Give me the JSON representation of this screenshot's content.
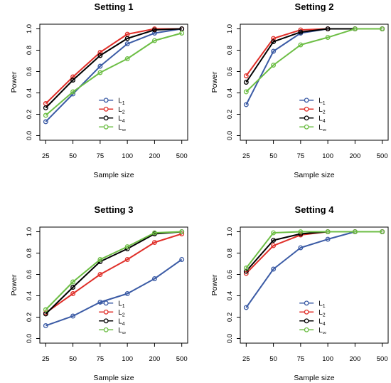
{
  "series_colors": {
    "L1": "#3B5BA5",
    "L2": "#E0302A",
    "L4": "#000000",
    "Linf": "#6DBE45"
  },
  "chart_data": [
    {
      "type": "line",
      "title": "Setting 1",
      "xlabel": "Sample size",
      "ylabel": "Power",
      "x": [
        "25",
        "50",
        "75",
        "100",
        "200",
        "500"
      ],
      "ylim": [
        0,
        1
      ],
      "yticks": [
        "0.0",
        "0.2",
        "0.4",
        "0.6",
        "0.8",
        "1.0"
      ],
      "grid": false,
      "legend_position": "bottom-center",
      "series": [
        {
          "name": "L1",
          "base": "L",
          "sub": "1",
          "color": "#3B5BA5",
          "values": [
            0.13,
            0.39,
            0.65,
            0.86,
            0.96,
            1.0
          ]
        },
        {
          "name": "L2",
          "base": "L",
          "sub": "2",
          "color": "#E0302A",
          "values": [
            0.3,
            0.55,
            0.78,
            0.95,
            1.0,
            1.0
          ]
        },
        {
          "name": "L4",
          "base": "L",
          "sub": "4",
          "color": "#000000",
          "values": [
            0.26,
            0.52,
            0.75,
            0.91,
            0.99,
            1.0
          ]
        },
        {
          "name": "L∞",
          "base": "L",
          "sub": "∞",
          "color": "#6DBE45",
          "values": [
            0.19,
            0.41,
            0.59,
            0.72,
            0.89,
            0.96
          ]
        }
      ]
    },
    {
      "type": "line",
      "title": "Setting 2",
      "xlabel": "Sample size",
      "ylabel": "Power",
      "x": [
        "25",
        "50",
        "75",
        "100",
        "200",
        "500"
      ],
      "ylim": [
        0,
        1
      ],
      "yticks": [
        "0.0",
        "0.2",
        "0.4",
        "0.6",
        "0.8",
        "1.0"
      ],
      "grid": false,
      "legend_position": "bottom-center",
      "series": [
        {
          "name": "L1",
          "base": "L",
          "sub": "1",
          "color": "#3B5BA5",
          "values": [
            0.29,
            0.79,
            0.96,
            1.0,
            1.0,
            1.0
          ]
        },
        {
          "name": "L2",
          "base": "L",
          "sub": "2",
          "color": "#E0302A",
          "values": [
            0.56,
            0.91,
            0.99,
            1.0,
            1.0,
            1.0
          ]
        },
        {
          "name": "L4",
          "base": "L",
          "sub": "4",
          "color": "#000000",
          "values": [
            0.5,
            0.88,
            0.97,
            1.0,
            1.0,
            1.0
          ]
        },
        {
          "name": "L∞",
          "base": "L",
          "sub": "∞",
          "color": "#6DBE45",
          "values": [
            0.41,
            0.66,
            0.85,
            0.92,
            1.0,
            1.0
          ]
        }
      ]
    },
    {
      "type": "line",
      "title": "Setting 3",
      "xlabel": "Sample size",
      "ylabel": "Power",
      "x": [
        "25",
        "50",
        "75",
        "100",
        "200",
        "500"
      ],
      "ylim": [
        0,
        1
      ],
      "yticks": [
        "0.0",
        "0.2",
        "0.4",
        "0.6",
        "0.8",
        "1.0"
      ],
      "grid": false,
      "legend_position": "bottom-center",
      "series": [
        {
          "name": "L1",
          "base": "L",
          "sub": "1",
          "color": "#3B5BA5",
          "values": [
            0.12,
            0.21,
            0.34,
            0.42,
            0.56,
            0.74
          ]
        },
        {
          "name": "L2",
          "base": "L",
          "sub": "2",
          "color": "#E0302A",
          "values": [
            0.24,
            0.42,
            0.6,
            0.74,
            0.9,
            0.98
          ]
        },
        {
          "name": "L4",
          "base": "L",
          "sub": "4",
          "color": "#000000",
          "values": [
            0.23,
            0.48,
            0.72,
            0.84,
            0.98,
            1.0
          ]
        },
        {
          "name": "L∞",
          "base": "L",
          "sub": "∞",
          "color": "#6DBE45",
          "values": [
            0.27,
            0.53,
            0.74,
            0.86,
            0.99,
            1.0
          ]
        }
      ]
    },
    {
      "type": "line",
      "title": "Setting 4",
      "xlabel": "Sample size",
      "ylabel": "Power",
      "x": [
        "25",
        "50",
        "75",
        "100",
        "200",
        "500"
      ],
      "ylim": [
        0,
        1
      ],
      "yticks": [
        "0.0",
        "0.2",
        "0.4",
        "0.6",
        "0.8",
        "1.0"
      ],
      "grid": false,
      "legend_position": "bottom-center",
      "series": [
        {
          "name": "L1",
          "base": "L",
          "sub": "1",
          "color": "#3B5BA5",
          "values": [
            0.29,
            0.65,
            0.85,
            0.93,
            1.0,
            1.0
          ]
        },
        {
          "name": "L2",
          "base": "L",
          "sub": "2",
          "color": "#E0302A",
          "values": [
            0.61,
            0.87,
            0.97,
            1.0,
            1.0,
            1.0
          ]
        },
        {
          "name": "L4",
          "base": "L",
          "sub": "4",
          "color": "#000000",
          "values": [
            0.63,
            0.92,
            0.98,
            1.0,
            1.0,
            1.0
          ]
        },
        {
          "name": "L∞",
          "base": "L",
          "sub": "∞",
          "color": "#6DBE45",
          "values": [
            0.66,
            0.99,
            1.0,
            1.0,
            1.0,
            1.0
          ]
        }
      ]
    }
  ]
}
